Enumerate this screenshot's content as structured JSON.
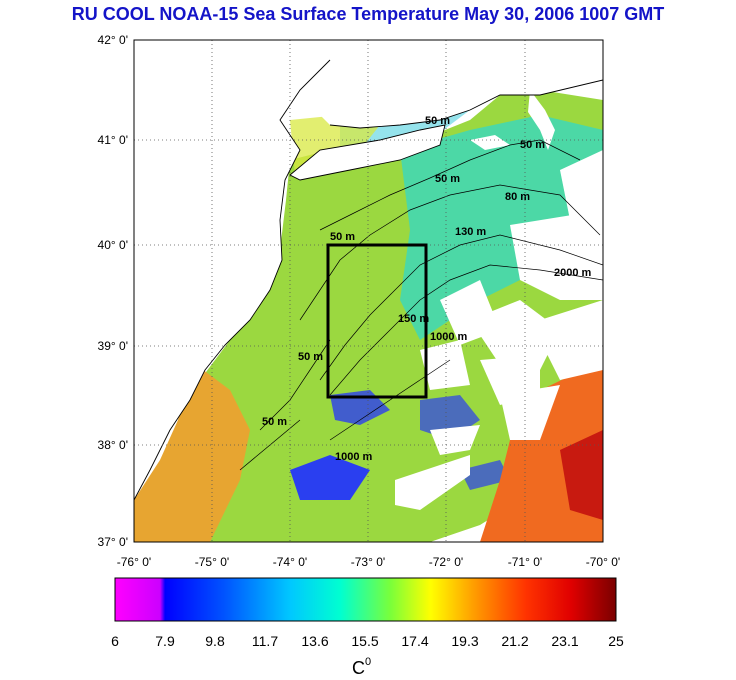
{
  "title": "RU COOL  NOAA-15 Sea Surface Temperature May 30, 2006 1007 GMT",
  "lat_ticks": [
    "42° 0'",
    "41° 0'",
    "40° 0'",
    "39° 0'",
    "38° 0'",
    "37° 0'"
  ],
  "lon_ticks": [
    "-76° 0'",
    "-75° 0'",
    "-74° 0'",
    "-73° 0'",
    "-72° 0'",
    "-71° 0'",
    "-70° 0'"
  ],
  "colorbar": {
    "ticks": [
      "6",
      "7.9",
      "9.8",
      "11.7",
      "13.6",
      "15.5",
      "17.4",
      "19.3",
      "21.2",
      "23.1",
      "25"
    ],
    "unit": "C",
    "unit_sup": "0"
  },
  "contour_labels": [
    "50 m",
    "50 m",
    "50 m",
    "80 m",
    "130 m",
    "50 m",
    "2000 m",
    "150 m",
    "1000 m",
    "50 m",
    "50 m",
    "1000 m"
  ],
  "colors": {
    "title": "#1414c8",
    "land": "#ffffff",
    "ocean_warm": "#e08a2a",
    "ocean_mid": "#9bd840",
    "ocean_cool": "#35d8b0",
    "cold_patch": "#2a3ff0",
    "box": "#000000"
  },
  "map": {
    "lat_range": [
      37,
      42
    ],
    "lon_range": [
      -76,
      -70
    ],
    "study_box": {
      "lon": [
        -73.5,
        -72.2
      ],
      "lat": [
        38.5,
        40.0
      ]
    }
  }
}
